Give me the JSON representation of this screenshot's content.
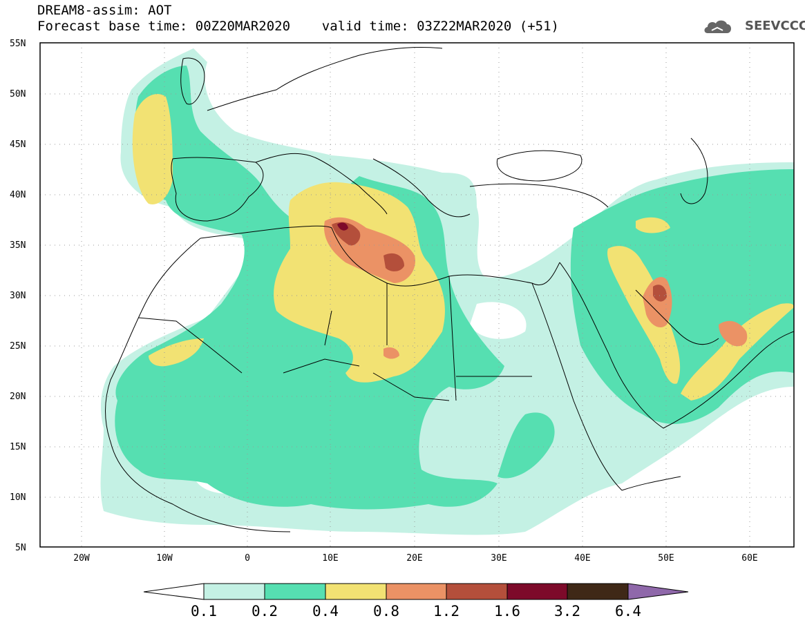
{
  "header": {
    "line1": "DREAM8-assim: AOT",
    "line2": "Forecast base time: 00Z20MAR2020    valid time: 03Z22MAR2020 (+51)"
  },
  "logo": {
    "text": "SEEVCCC",
    "icon": "cloud-icon",
    "color": "#555555"
  },
  "axes": {
    "lat_labels": [
      "55N",
      "50N",
      "45N",
      "40N",
      "35N",
      "30N",
      "25N",
      "20N",
      "15N",
      "10N",
      "5N"
    ],
    "lon_labels": [
      "20W",
      "10W",
      "0",
      "10E",
      "20E",
      "30E",
      "40E",
      "50E",
      "60E"
    ]
  },
  "colorbar": {
    "labels": [
      "0.1",
      "0.2",
      "0.4",
      "0.8",
      "1.2",
      "1.6",
      "3.2",
      "6.4"
    ],
    "colors": [
      "#ffffff",
      "#c4f1e4",
      "#56dfb1",
      "#f2e273",
      "#eb9265",
      "#b44f3b",
      "#7d0a2a",
      "#3f2817",
      "#8f68aa"
    ]
  },
  "field_colors": {
    "low": "#c4f1e4",
    "medium": "#56dfb1",
    "high": "#f2e273",
    "veryhigh": "#eb9265",
    "extreme": "#b44f3b",
    "peak": "#7d0a2a"
  }
}
